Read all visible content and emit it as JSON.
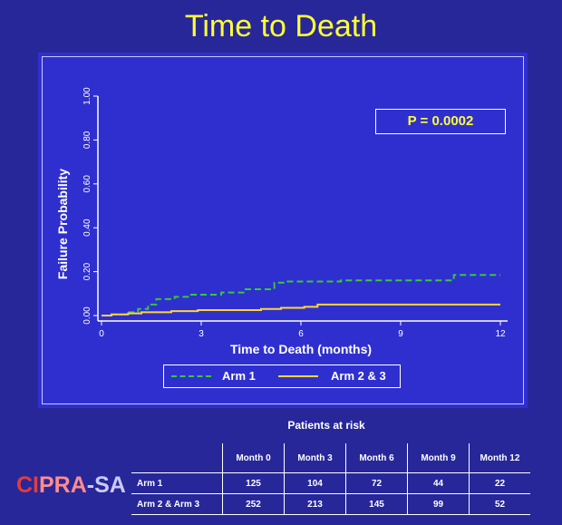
{
  "slide": {
    "title": "Time to Death"
  },
  "chart_data": {
    "type": "line",
    "title": "",
    "xlabel": "Time to Death (months)",
    "ylabel": "Failure Probability",
    "xlim": [
      0,
      12
    ],
    "ylim": [
      0,
      1
    ],
    "x_ticks": [
      "0",
      "3",
      "6",
      "9",
      "12"
    ],
    "y_ticks": [
      "0.00",
      "0.20",
      "0.40",
      "0.60",
      "0.80",
      "1.00"
    ],
    "grid": false,
    "legend_position": "bottom",
    "annotation": "P = 0.0002",
    "series": [
      {
        "name": "Arm 1",
        "color": "#33cc33",
        "style": "dashed",
        "step_points": [
          [
            0,
            0.0
          ],
          [
            0.3,
            0.005
          ],
          [
            0.8,
            0.015
          ],
          [
            1.1,
            0.03
          ],
          [
            1.4,
            0.05
          ],
          [
            1.65,
            0.075
          ],
          [
            2.2,
            0.085
          ],
          [
            2.6,
            0.095
          ],
          [
            3.6,
            0.105
          ],
          [
            4.3,
            0.12
          ],
          [
            5.2,
            0.15
          ],
          [
            5.6,
            0.155
          ],
          [
            7.2,
            0.16
          ],
          [
            10.6,
            0.185
          ],
          [
            12,
            0.185
          ]
        ]
      },
      {
        "name": "Arm 2 & 3",
        "color": "#ffd633",
        "style": "solid",
        "step_points": [
          [
            0,
            0.0
          ],
          [
            0.3,
            0.005
          ],
          [
            0.8,
            0.01
          ],
          [
            1.2,
            0.015
          ],
          [
            2.1,
            0.02
          ],
          [
            2.9,
            0.025
          ],
          [
            4.8,
            0.03
          ],
          [
            5.4,
            0.035
          ],
          [
            6.1,
            0.04
          ],
          [
            6.5,
            0.05
          ],
          [
            12,
            0.05
          ]
        ]
      }
    ]
  },
  "risk_table": {
    "title": "Patients at risk",
    "columns": [
      "Month 0",
      "Month 3",
      "Month 6",
      "Month 9",
      "Month 12"
    ],
    "rows": [
      {
        "label": "Arm 1",
        "values": [
          "125",
          "104",
          "72",
          "44",
          "22"
        ]
      },
      {
        "label": "Arm 2 & Arm 3",
        "values": [
          "252",
          "213",
          "145",
          "99",
          "52"
        ]
      }
    ]
  },
  "logo": {
    "part1": "CI",
    "part2": "PRA",
    "part3": "-SA"
  }
}
